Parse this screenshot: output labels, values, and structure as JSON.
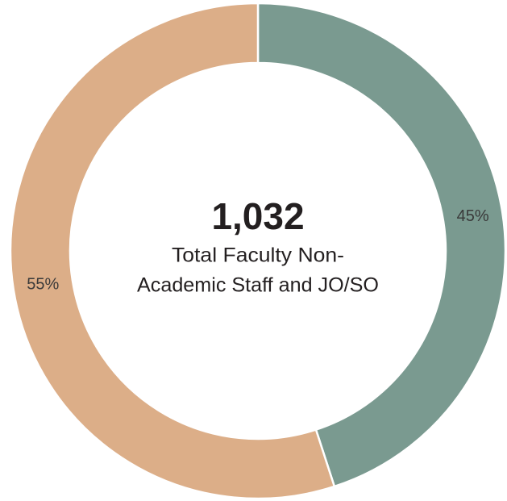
{
  "chart_data": {
    "type": "donut",
    "center_value": "1,032",
    "center_text": [
      "Total Faculty Non-",
      "Academic Staff and JO/SO"
    ],
    "categories": [
      null,
      null
    ],
    "values": [
      45,
      55
    ],
    "value_labels": [
      "45%",
      "55%"
    ],
    "colors": [
      "#7a9a90",
      "#dcae88"
    ]
  }
}
